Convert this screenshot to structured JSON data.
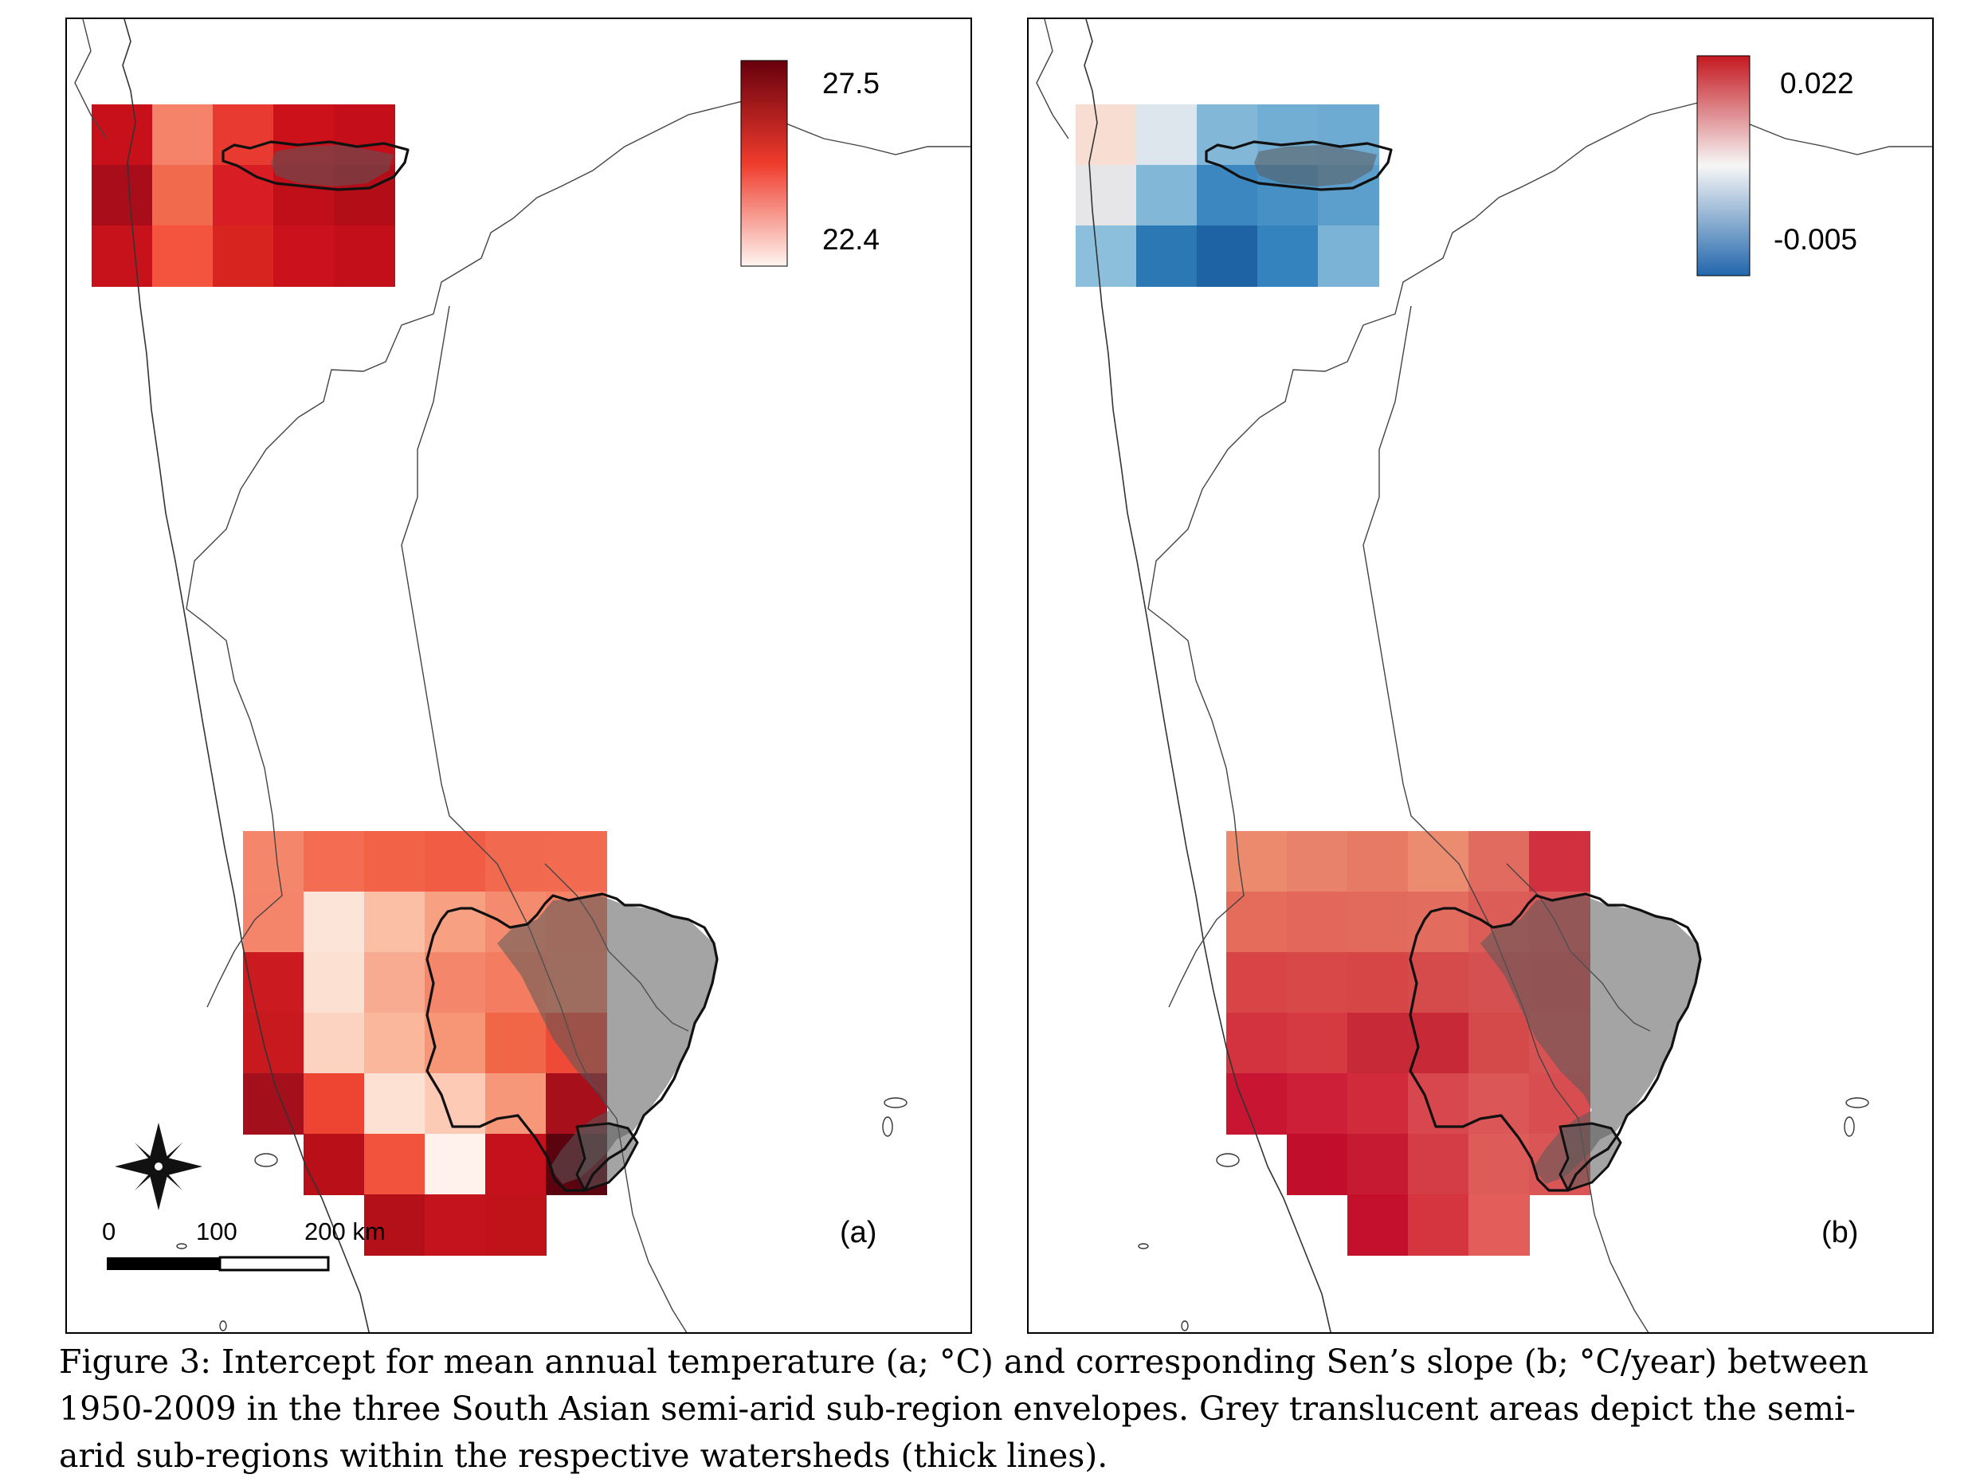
{
  "panel_a": {
    "label": "(a)",
    "legend": {
      "max_label": "27.5",
      "min_label": "22.4",
      "color_high": "#67000d",
      "color_mid": "#ef3b2c",
      "color_low": "#fff5f0"
    },
    "scale_bar": {
      "labels": [
        "0",
        "100",
        "200 km"
      ]
    },
    "north_arrow_icon": "compass-rose-icon",
    "grid_north_colors": [
      [
        "#c8101a",
        "#f4836a",
        "#e93a31",
        "#cd111b",
        "#c40f1a"
      ],
      [
        "#a80d19",
        "#f26a4e",
        "#d81e24",
        "#c10f19",
        "#b30d18"
      ],
      [
        "#c8121b",
        "#f4533d",
        "#d8241f",
        "#cb111b",
        "#c20f1a"
      ]
    ],
    "grid_south_colors": [
      [
        "#f4876b",
        "#f46d52",
        "#f26247",
        "#f15c45",
        "#f16a4f",
        "#f26b50"
      ],
      [
        "#f4846a",
        "#fde4d8",
        "#fbbfa5",
        "#f8a082",
        "#f48b6e",
        "#f48266"
      ],
      [
        "#cb1b20",
        "#fce0d2",
        "#f8ab90",
        "#f4876b",
        "#f47d61",
        "#f48669"
      ],
      [
        "#c81a1e",
        "#fcd3c1",
        "#fbb79b",
        "#f69677",
        "#f26648",
        "#ef4a37"
      ],
      [
        "#a30f1b",
        "#ee4532",
        "#fde1d3",
        "#fccab5",
        "#f6977a",
        "#a70f1b"
      ],
      [
        "",
        "#b80f19",
        "#f2533c",
        "#fff2ec",
        "#c4111b",
        "#5c0310"
      ],
      [
        "",
        "",
        "#b3101a",
        "#c5131e",
        "#bf1219",
        ""
      ]
    ]
  },
  "panel_b": {
    "label": "(b)",
    "legend": {
      "max_label": "0.022",
      "min_label": "-0.005",
      "color_high": "#c4181f",
      "color_mid": "#f7f7f7",
      "color_low": "#2166ac"
    },
    "grid_north_colors": [
      [
        "#f7ddd2",
        "#dde6ec",
        "#82b7d8",
        "#72aed3",
        "#6eabd2"
      ],
      [
        "#e6e5e8",
        "#82b7d8",
        "#3d87c0",
        "#4690c5",
        "#5c9fcd"
      ],
      [
        "#8cbfdc",
        "#2b78b5",
        "#1e64a4",
        "#3483be",
        "#7ab3d5"
      ]
    ],
    "grid_south_colors": [
      [
        "#eb8a6c",
        "#e9826a",
        "#e67a64",
        "#eb8b70",
        "#e16b5e",
        "#d1313f"
      ],
      [
        "#e56b5a",
        "#e3675b",
        "#e16a5c",
        "#e26d5f",
        "#dc5c57",
        "#db5656"
      ],
      [
        "#d94446",
        "#d94848",
        "#d74647",
        "#d54a4b",
        "#d55050",
        "#d84d4e"
      ],
      [
        "#d2333e",
        "#d53a43",
        "#c72a36",
        "#c72a36",
        "#d44a4b",
        "#d75252"
      ],
      [
        "#c81532",
        "#cd1f37",
        "#d02a3b",
        "#d8474d",
        "#db5656",
        "#d84d4f"
      ],
      [
        "",
        "#c00e2c",
        "#c61a33",
        "#d43d45",
        "#dd5c59",
        "#da5555"
      ],
      [
        "",
        "",
        "#c40f2d",
        "#d5353f",
        "#e35e5a",
        ""
      ]
    ]
  },
  "caption": {
    "line1": "Figure 3: Intercept for mean annual temperature (a; °C) and corresponding Sen’s slope (b; °C/year) between",
    "line2": "1950-2009 in the three South Asian semi-arid sub-region envelopes. Grey translucent areas depict the semi-",
    "line3": "arid sub-regions within the respective watersheds (thick lines)."
  }
}
